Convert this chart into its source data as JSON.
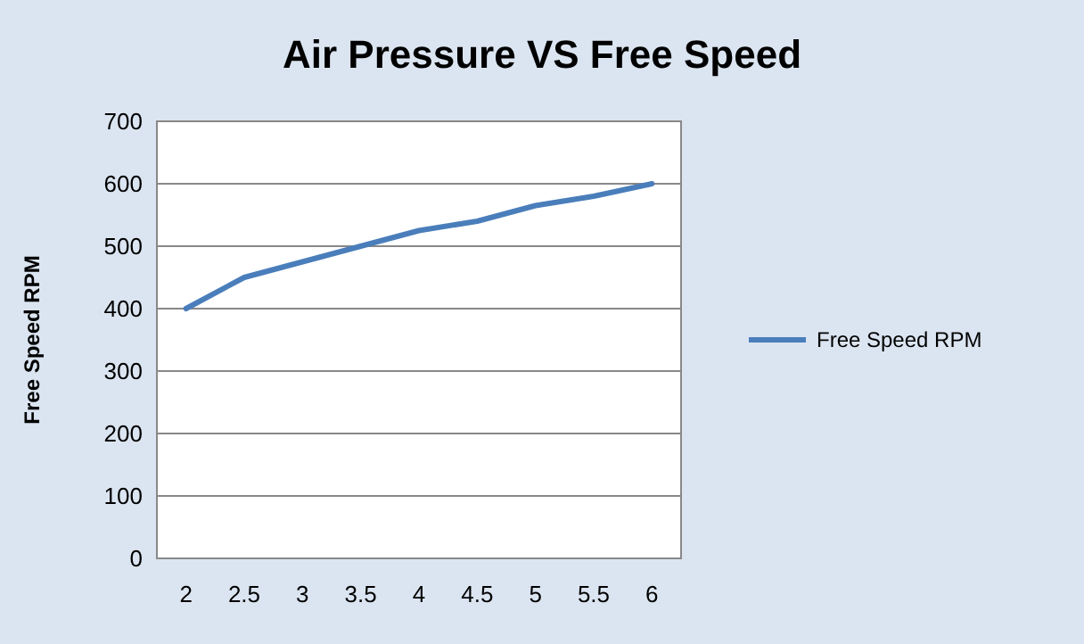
{
  "chart_data": {
    "type": "line",
    "title": "Air Pressure VS Free Speed",
    "ylabel": "Free Speed RPM",
    "categories": [
      "2",
      "2.5",
      "3",
      "3.5",
      "4",
      "4.5",
      "5",
      "5.5",
      "6"
    ],
    "series": [
      {
        "name": "Free Speed RPM",
        "color": "#4a7ebb",
        "values": [
          400,
          450,
          475,
          500,
          525,
          540,
          565,
          580,
          600
        ]
      }
    ],
    "ylim": [
      0,
      700
    ],
    "yticks": [
      0,
      100,
      200,
      300,
      400,
      500,
      600,
      700
    ],
    "grid": "y",
    "legend": "right",
    "marker": "none",
    "line_style": "solid"
  }
}
